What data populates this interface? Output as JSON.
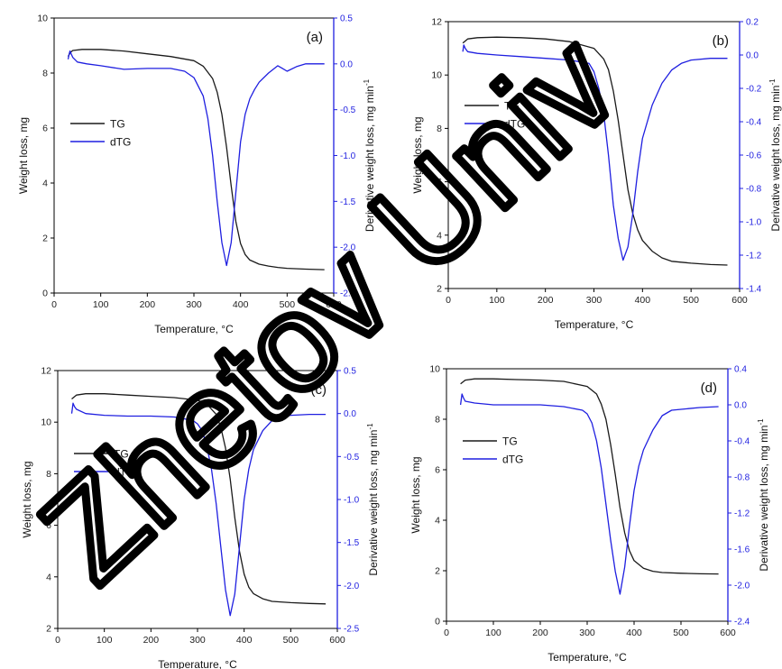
{
  "figure": {
    "watermark_text": "Zhetov Univ",
    "colors": {
      "tg": "#1a1a1a",
      "dtg": "#1f1fe0",
      "axis_left": "#000000",
      "axis_right": "#1f1fe0",
      "watermark": "#000000"
    }
  },
  "chart_data": [
    {
      "type": "line",
      "panel_label": "(a)",
      "xlabel": "Temperature, °C",
      "ylabel": "Weight loss, mg",
      "y2label": "Derivative weight loss, mg min",
      "y2label_sup": "-1",
      "xlim": [
        0,
        600
      ],
      "ylim": [
        0,
        10
      ],
      "y2lim": [
        -2.5,
        0.5
      ],
      "xticks": [
        0,
        100,
        200,
        300,
        400,
        500,
        600
      ],
      "yticks": [
        0,
        2,
        4,
        6,
        8,
        10
      ],
      "y2ticks": [
        -2.5,
        -2.0,
        -1.5,
        -1.0,
        -0.5,
        0.0,
        0.5
      ],
      "y2ticklabels": [
        "-2.5",
        "-2.0",
        "-1.5",
        "-1.0",
        "-0.5",
        "0.0",
        "0.5"
      ],
      "legend_position": "middle-left",
      "series": [
        {
          "name": "TG",
          "axis": "left",
          "x": [
            30,
            35,
            40,
            60,
            100,
            150,
            200,
            250,
            300,
            320,
            340,
            350,
            360,
            370,
            380,
            390,
            400,
            410,
            420,
            440,
            460,
            480,
            500,
            540,
            580
          ],
          "y": [
            8.6,
            8.75,
            8.82,
            8.86,
            8.86,
            8.8,
            8.7,
            8.6,
            8.45,
            8.25,
            7.8,
            7.3,
            6.5,
            5.3,
            3.9,
            2.6,
            1.8,
            1.4,
            1.2,
            1.05,
            0.98,
            0.93,
            0.9,
            0.87,
            0.85
          ]
        },
        {
          "name": "dTG",
          "axis": "right",
          "x": [
            30,
            32,
            34,
            40,
            50,
            70,
            100,
            150,
            200,
            250,
            280,
            300,
            320,
            330,
            340,
            350,
            360,
            370,
            380,
            390,
            400,
            410,
            420,
            430,
            440,
            460,
            480,
            490,
            500,
            520,
            540,
            580
          ],
          "y": [
            0.05,
            0.1,
            0.14,
            0.07,
            0.02,
            0.0,
            -0.02,
            -0.06,
            -0.05,
            -0.05,
            -0.08,
            -0.15,
            -0.35,
            -0.6,
            -1.0,
            -1.5,
            -1.95,
            -2.2,
            -1.95,
            -1.4,
            -0.85,
            -0.55,
            -0.38,
            -0.28,
            -0.2,
            -0.1,
            -0.02,
            -0.05,
            -0.08,
            -0.03,
            0.0,
            0.0
          ]
        }
      ]
    },
    {
      "type": "line",
      "panel_label": "(b)",
      "xlabel": "Temperature, °C",
      "ylabel": "Weight loss, mg",
      "y2label": "Derivative weight loss, mg min",
      "y2label_sup": "-1",
      "xlim": [
        0,
        600
      ],
      "ylim": [
        2,
        12
      ],
      "y2lim": [
        -1.4,
        0.2
      ],
      "xticks": [
        0,
        100,
        200,
        300,
        400,
        500,
        600
      ],
      "yticks": [
        2,
        4,
        6,
        8,
        10,
        12
      ],
      "y2ticks": [
        -1.4,
        -1.2,
        -1.0,
        -0.8,
        -0.6,
        -0.4,
        -0.2,
        0.0,
        0.2
      ],
      "y2ticklabels": [
        "-1.4",
        "-1.2",
        "-1.0",
        "-0.8",
        "-0.6",
        "-0.4",
        "-0.2",
        "0.0",
        "0.2"
      ],
      "legend_position": "upper-left",
      "series": [
        {
          "name": "TG",
          "axis": "left",
          "x": [
            30,
            40,
            60,
            100,
            150,
            200,
            250,
            300,
            320,
            330,
            340,
            350,
            360,
            370,
            380,
            390,
            400,
            420,
            440,
            460,
            500,
            540,
            575
          ],
          "y": [
            11.2,
            11.35,
            11.4,
            11.42,
            11.4,
            11.35,
            11.25,
            11.0,
            10.6,
            10.2,
            9.4,
            8.3,
            7.0,
            5.7,
            4.8,
            4.2,
            3.8,
            3.4,
            3.15,
            3.02,
            2.95,
            2.9,
            2.88
          ]
        },
        {
          "name": "dTG",
          "axis": "right",
          "x": [
            30,
            32,
            35,
            40,
            60,
            100,
            150,
            200,
            250,
            290,
            300,
            310,
            320,
            330,
            340,
            350,
            360,
            370,
            380,
            390,
            400,
            420,
            440,
            460,
            480,
            500,
            540,
            575
          ],
          "y": [
            0.02,
            0.06,
            0.04,
            0.02,
            0.01,
            0.0,
            -0.01,
            -0.02,
            -0.03,
            -0.05,
            -0.1,
            -0.2,
            -0.35,
            -0.6,
            -0.9,
            -1.1,
            -1.23,
            -1.15,
            -0.95,
            -0.7,
            -0.5,
            -0.3,
            -0.17,
            -0.09,
            -0.05,
            -0.03,
            -0.02,
            -0.02
          ]
        }
      ]
    },
    {
      "type": "line",
      "panel_label": "(c)",
      "xlabel": "Temperature, °C",
      "ylabel": "Weight loss, mg",
      "y2label": "Derivative weight loss, mg min",
      "y2label_sup": "-1",
      "xlim": [
        0,
        600
      ],
      "ylim": [
        2,
        12
      ],
      "y2lim": [
        -2.5,
        0.5
      ],
      "xticks": [
        0,
        100,
        200,
        300,
        400,
        500,
        600
      ],
      "yticks": [
        2,
        4,
        6,
        8,
        10,
        12
      ],
      "y2ticks": [
        -2.5,
        -2.0,
        -1.5,
        -1.0,
        -0.5,
        0.0,
        0.5
      ],
      "y2ticklabels": [
        "-2.5",
        "-2.0",
        "-1.5",
        "-1.0",
        "-0.5",
        "0.0",
        "0.5"
      ],
      "legend_position": "middle-left",
      "series": [
        {
          "name": "TG",
          "axis": "left",
          "x": [
            30,
            40,
            60,
            100,
            150,
            200,
            250,
            300,
            320,
            340,
            350,
            360,
            370,
            380,
            390,
            400,
            410,
            420,
            440,
            460,
            500,
            540,
            575
          ],
          "y": [
            10.9,
            11.05,
            11.1,
            11.1,
            11.05,
            11.0,
            10.95,
            10.85,
            10.7,
            10.3,
            9.8,
            9.0,
            7.8,
            6.3,
            5.0,
            4.1,
            3.6,
            3.35,
            3.15,
            3.05,
            3.0,
            2.97,
            2.95
          ]
        },
        {
          "name": "dTG",
          "axis": "right",
          "x": [
            30,
            33,
            36,
            40,
            60,
            100,
            150,
            200,
            250,
            290,
            300,
            310,
            320,
            330,
            340,
            350,
            360,
            370,
            380,
            390,
            400,
            410,
            420,
            440,
            460,
            480,
            500,
            540,
            575
          ],
          "y": [
            0.0,
            0.12,
            0.08,
            0.05,
            0.0,
            -0.02,
            -0.03,
            -0.03,
            -0.04,
            -0.08,
            -0.12,
            -0.2,
            -0.38,
            -0.65,
            -1.05,
            -1.55,
            -2.05,
            -2.35,
            -2.1,
            -1.55,
            -1.0,
            -0.65,
            -0.42,
            -0.2,
            -0.08,
            -0.04,
            -0.02,
            -0.01,
            -0.01
          ]
        }
      ]
    },
    {
      "type": "line",
      "panel_label": "(d)",
      "xlabel": "Temperature, °C",
      "ylabel": "Weight loss, mg",
      "y2label": "Derivative weight loss, mg min",
      "y2label_sup": "-1",
      "xlim": [
        0,
        600
      ],
      "ylim": [
        0,
        10
      ],
      "y2lim": [
        -2.4,
        0.4
      ],
      "xticks": [
        0,
        100,
        200,
        300,
        400,
        500,
        600
      ],
      "yticks": [
        0,
        2,
        4,
        6,
        8,
        10
      ],
      "y2ticks": [
        -2.4,
        -2.0,
        -1.6,
        -1.2,
        -0.8,
        -0.4,
        0.0,
        0.4
      ],
      "y2ticklabels": [
        "-2.4",
        "-2.0",
        "-1.6",
        "-1.2",
        "-0.8",
        "-0.4",
        "0.0",
        "0.4"
      ],
      "legend_position": "upper-left",
      "series": [
        {
          "name": "TG",
          "axis": "left",
          "x": [
            30,
            40,
            60,
            100,
            150,
            200,
            250,
            300,
            320,
            330,
            340,
            350,
            360,
            370,
            380,
            390,
            400,
            420,
            440,
            460,
            500,
            540,
            580
          ],
          "y": [
            9.4,
            9.55,
            9.6,
            9.6,
            9.57,
            9.55,
            9.5,
            9.3,
            9.0,
            8.6,
            8.0,
            7.0,
            5.8,
            4.5,
            3.5,
            2.8,
            2.4,
            2.1,
            1.98,
            1.93,
            1.9,
            1.88,
            1.87
          ]
        },
        {
          "name": "dTG",
          "axis": "right",
          "x": [
            30,
            33,
            36,
            40,
            60,
            100,
            150,
            200,
            250,
            290,
            300,
            310,
            320,
            330,
            340,
            350,
            360,
            370,
            380,
            390,
            400,
            410,
            420,
            440,
            460,
            480,
            500,
            540,
            580
          ],
          "y": [
            0.0,
            0.12,
            0.08,
            0.04,
            0.02,
            0.0,
            0.0,
            0.0,
            -0.02,
            -0.06,
            -0.1,
            -0.2,
            -0.4,
            -0.7,
            -1.1,
            -1.5,
            -1.85,
            -2.1,
            -1.8,
            -1.35,
            -0.95,
            -0.68,
            -0.5,
            -0.28,
            -0.12,
            -0.06,
            -0.05,
            -0.03,
            -0.02
          ]
        }
      ]
    }
  ]
}
